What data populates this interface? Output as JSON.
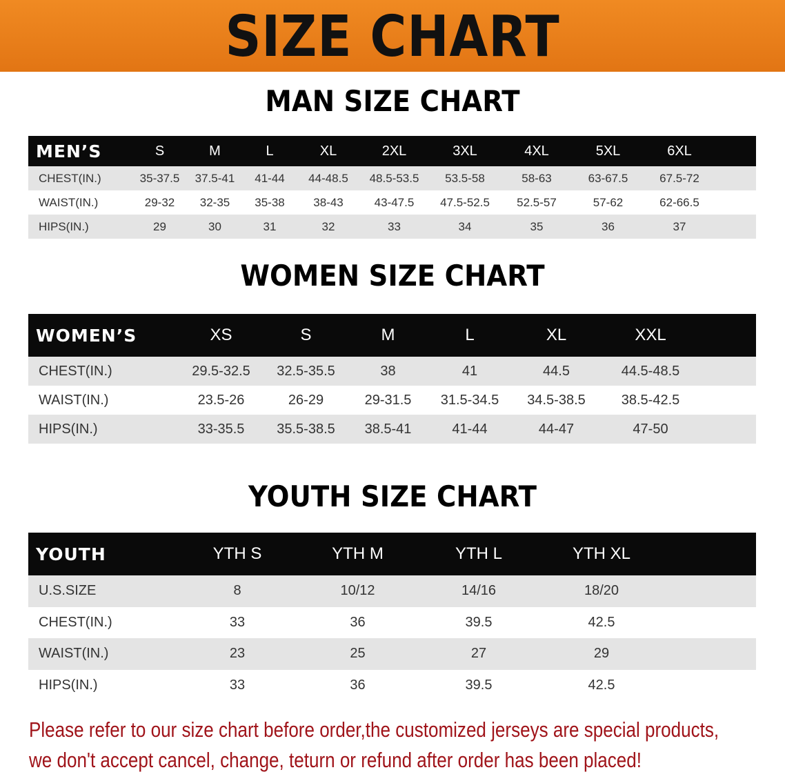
{
  "banner": {
    "title": "SIZE CHART",
    "color": "#e87a1a"
  },
  "men": {
    "title": "MAN SIZE CHART",
    "header": [
      "MEN’S",
      "S",
      "M",
      "L",
      "XL",
      "2XL",
      "3XL",
      "4XL",
      "5XL",
      "6XL"
    ],
    "rows": [
      [
        "CHEST(IN.)",
        "35-37.5",
        "37.5-41",
        "41-44",
        "44-48.5",
        "48.5-53.5",
        "53.5-58",
        "58-63",
        "63-67.5",
        "67.5-72"
      ],
      [
        "WAIST(IN.)",
        "29-32",
        "32-35",
        "35-38",
        "38-43",
        "43-47.5",
        "47.5-52.5",
        "52.5-57",
        "57-62",
        "62-66.5"
      ],
      [
        "HIPS(IN.)",
        "29",
        "30",
        "31",
        "32",
        "33",
        "34",
        "35",
        "36",
        "37"
      ]
    ]
  },
  "women": {
    "title": "WOMEN SIZE CHART",
    "header": [
      "WOMEN’S",
      "XS",
      "S",
      "M",
      "L",
      "XL",
      "XXL"
    ],
    "rows": [
      [
        "CHEST(IN.)",
        "29.5-32.5",
        "32.5-35.5",
        "38",
        "41",
        "44.5",
        "44.5-48.5"
      ],
      [
        "WAIST(IN.)",
        "23.5-26",
        "26-29",
        "29-31.5",
        "31.5-34.5",
        "34.5-38.5",
        "38.5-42.5"
      ],
      [
        "HIPS(IN.)",
        "33-35.5",
        "35.5-38.5",
        "38.5-41",
        "41-44",
        "44-47",
        "47-50"
      ]
    ]
  },
  "youth": {
    "title": "YOUTH SIZE CHART",
    "header": [
      "YOUTH",
      "YTH S",
      "YTH M",
      "YTH L",
      "YTH XL"
    ],
    "rows": [
      [
        "U.S.SIZE",
        "8",
        "10/12",
        "14/16",
        "18/20"
      ],
      [
        "CHEST(IN.)",
        "33",
        "36",
        "39.5",
        "42.5"
      ],
      [
        "WAIST(IN.)",
        "23",
        "25",
        "27",
        "29"
      ],
      [
        "HIPS(IN.)",
        "33",
        "36",
        "39.5",
        "42.5"
      ]
    ]
  },
  "note": {
    "line1": "Please refer to our size chart before order,the customized jerseys are special products,",
    "line2": "we don't accept cancel, change, teturn or refund after order has been placed!",
    "color": "#a0141a"
  }
}
